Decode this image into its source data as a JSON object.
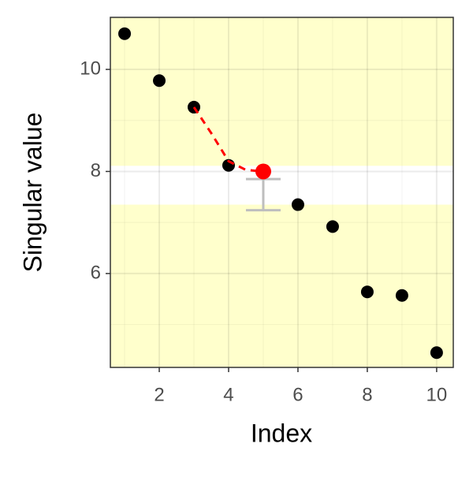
{
  "chart_data": {
    "type": "scatter",
    "x_label": "Index",
    "y_label": "Singular value",
    "xlim": [
      0.59,
      10.48
    ],
    "ylim": [
      4.16,
      11.02
    ],
    "xticks": [
      2,
      4,
      6,
      8,
      10
    ],
    "yticks": [
      6,
      8,
      10
    ],
    "x_minor_ticks": [
      1,
      3,
      5,
      7,
      9
    ],
    "y_minor_ticks": [
      5,
      7,
      9,
      11
    ],
    "grid": true,
    "background_color": "#ffffcc",
    "band": {
      "low": 7.35,
      "high": 8.11,
      "color": "#ffffff"
    },
    "series": [
      {
        "kind": "points",
        "color": "#000000",
        "x": [
          1,
          2,
          3,
          4,
          6,
          7,
          8,
          9,
          10
        ],
        "values": [
          10.7,
          9.78,
          9.26,
          8.12,
          7.35,
          6.92,
          5.64,
          5.57,
          4.45
        ]
      },
      {
        "kind": "dashed-line",
        "color": "#ff0000",
        "x": [
          3,
          3.5,
          4,
          4.5,
          5
        ],
        "values": [
          9.26,
          8.75,
          8.2,
          8.03,
          8.0
        ]
      },
      {
        "kind": "points",
        "color": "#ff0000",
        "x": [
          5
        ],
        "values": [
          8.0
        ]
      }
    ],
    "error_bar": {
      "x": 5,
      "low": 7.24,
      "high": 7.85,
      "color": "#bebebe"
    }
  }
}
